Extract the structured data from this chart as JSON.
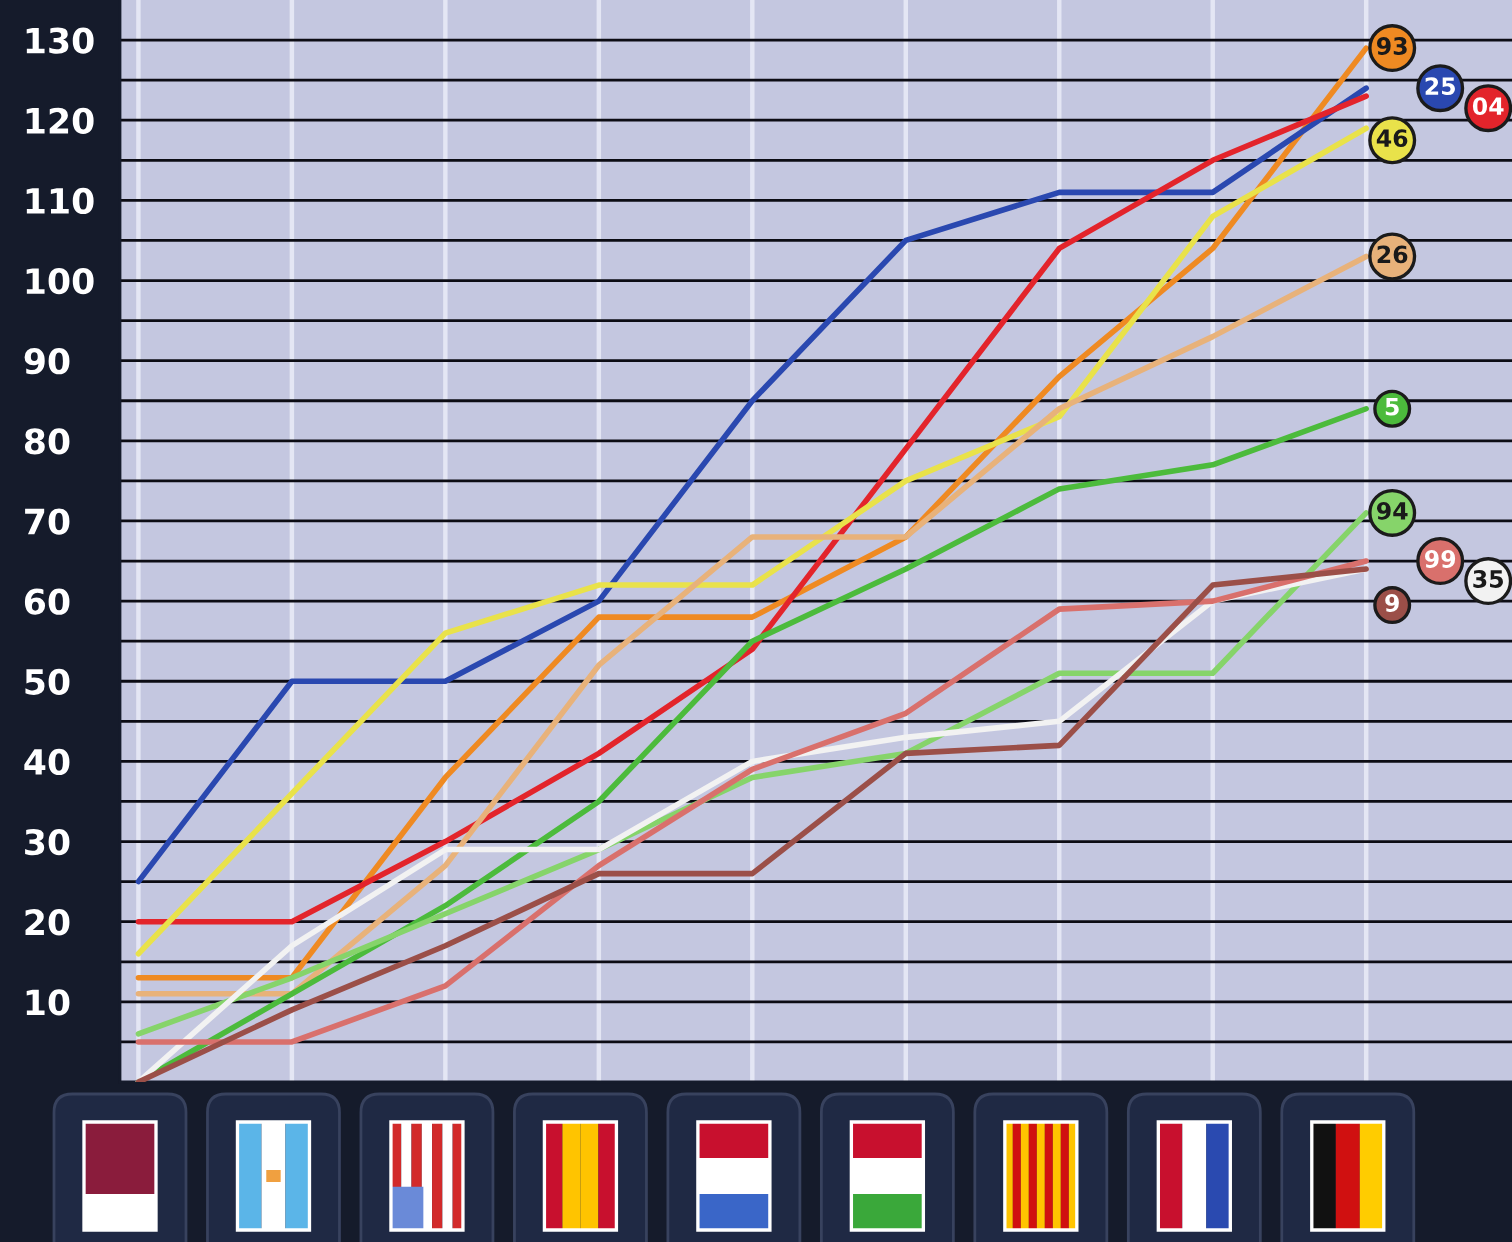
{
  "chart_data": {
    "type": "line",
    "categories": [
      null,
      null,
      null,
      null,
      null,
      null,
      null,
      null,
      null
    ],
    "ylim": [
      0,
      135
    ],
    "yticks": [
      {
        "value": 5,
        "label": null
      },
      10,
      {
        "value": 15,
        "label": null
      },
      20,
      {
        "value": 25,
        "label": null
      },
      30,
      {
        "value": 35,
        "label": null
      },
      40,
      {
        "value": 45,
        "label": null
      },
      50,
      {
        "value": 55,
        "label": null
      },
      60,
      {
        "value": 65,
        "label": null
      },
      70,
      {
        "value": 75,
        "label": null
      },
      80,
      {
        "value": 85,
        "label": null
      },
      90,
      {
        "value": 95,
        "label": null
      },
      100,
      {
        "value": 105,
        "label": null
      },
      110,
      {
        "value": 115,
        "label": null
      },
      120,
      {
        "value": 125,
        "label": null
      },
      130
    ],
    "tick_labels": "y",
    "grid": true,
    "series": [
      {
        "name": "93",
        "color": "#ef8a22",
        "values": [
          13,
          13,
          38,
          58,
          58,
          68,
          88,
          104,
          129
        ]
      },
      {
        "name": "25",
        "color": "#2a48b0",
        "values": [
          25,
          50,
          50,
          60,
          85,
          105,
          111,
          111,
          124
        ]
      },
      {
        "name": "04",
        "color": "#e3242b",
        "values": [
          20,
          20,
          30,
          41,
          54,
          79,
          104,
          115,
          123
        ]
      },
      {
        "name": "46",
        "color": "#e9e24a",
        "values": [
          16,
          36,
          56,
          62,
          62,
          75,
          83,
          108,
          119
        ]
      },
      {
        "name": "26",
        "color": "#e8b27a",
        "values": [
          11,
          11,
          27,
          52,
          68,
          68,
          84,
          93,
          103
        ]
      },
      {
        "name": "5",
        "color": "#4cbb3c",
        "values": [
          0,
          11,
          22,
          35,
          55,
          64,
          74,
          77,
          84
        ]
      },
      {
        "name": "94",
        "color": "#86d46a",
        "values": [
          6,
          13,
          21,
          29,
          38,
          41,
          51,
          51,
          71
        ]
      },
      {
        "name": "35",
        "color": "#f2f2f2",
        "values": [
          0,
          17,
          29,
          29,
          40,
          43,
          45,
          60,
          64
        ]
      },
      {
        "name": "99",
        "color": "#d9706c",
        "values": [
          5,
          5,
          12,
          27,
          39,
          46,
          59,
          60,
          65
        ]
      },
      {
        "name": "9",
        "color": "#9b4f48",
        "values": [
          0,
          9,
          17,
          26,
          26,
          41,
          42,
          62,
          64
        ]
      }
    ]
  }
}
